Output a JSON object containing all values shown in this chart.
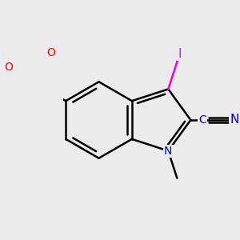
{
  "bg_color": "#ebebeb",
  "bond_color": "#000000",
  "bond_width": 1.8,
  "atom_colors": {
    "O": "#ff0000",
    "N": "#0000cc",
    "I": "#ee00ee",
    "C": "#000000"
  },
  "font_size": 10,
  "font_size_small": 8.5,
  "xlim": [
    -1.8,
    2.8
  ],
  "ylim": [
    -2.0,
    2.0
  ]
}
